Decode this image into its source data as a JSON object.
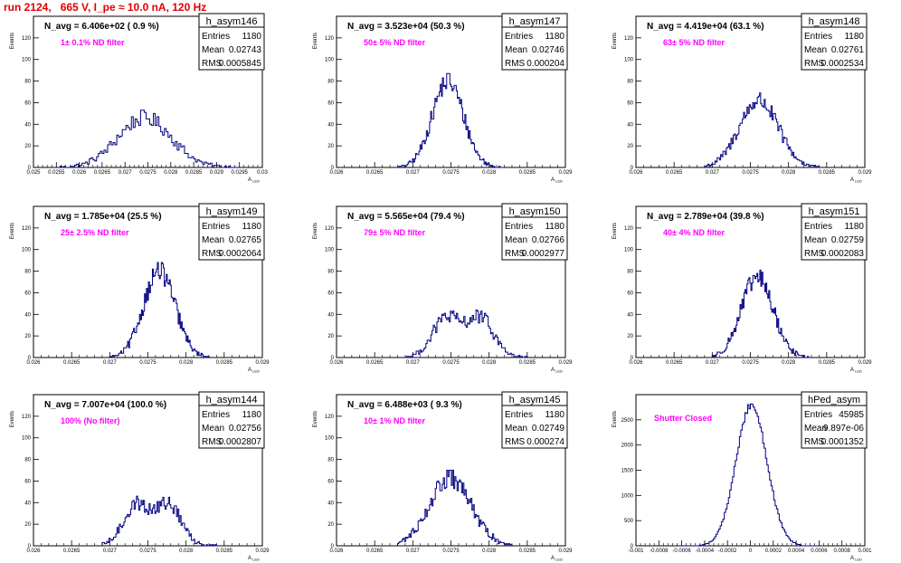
{
  "run_title": "run 2124,   665 V, I_pe ≈ 10.0 nA, 120 Hz",
  "colors": {
    "line": "#000080",
    "filter_text": "#ff00ff",
    "run_title": "#e00000",
    "axes": "#000000"
  },
  "chart_data": [
    {
      "type": "bar",
      "name": "h_asym146",
      "N_label": "N_avg = 6.406e+02 ( 0.9 %)",
      "filter": "1± 0.1% ND filter",
      "stats": {
        "Entries": "1180",
        "Mean": "0.02743",
        "RMS": "0.0005845"
      },
      "xlabel": "A_{LED}",
      "ylabel": "Events",
      "xlim": [
        0.025,
        0.03
      ],
      "ylim": [
        0,
        140
      ],
      "xticks": [
        "0.025",
        "0.0255",
        "0.026",
        "0.0265",
        "0.027",
        "0.0275",
        "0.028",
        "0.0285",
        "0.029",
        "0.0295",
        "0.03"
      ],
      "yticks": [
        "0",
        "20",
        "40",
        "60",
        "80",
        "100",
        "120"
      ],
      "hist_mu": 0.02743,
      "hist_sigma": 0.000585,
      "hist_peak": 46,
      "hist_range": [
        0.0255,
        0.0295
      ],
      "bins": 100,
      "bimodal": 0
    },
    {
      "type": "bar",
      "name": "h_asym147",
      "N_label": "N_avg = 3.523e+04 (50.3 %)",
      "filter": "50± 5% ND filter",
      "stats": {
        "Entries": "1180",
        "Mean": "0.02746",
        "RMS": "0.000204"
      },
      "xlabel": "A_{LED}",
      "ylabel": "Events",
      "xlim": [
        0.026,
        0.029
      ],
      "ylim": [
        0,
        140
      ],
      "xticks": [
        "0.026",
        "0.0265",
        "0.027",
        "0.0275",
        "0.028",
        "0.0285",
        "0.029"
      ],
      "yticks": [
        "0",
        "20",
        "40",
        "60",
        "80",
        "100",
        "120"
      ],
      "hist_mu": 0.02746,
      "hist_sigma": 0.000204,
      "hist_peak": 80,
      "hist_range": [
        0.0268,
        0.0282
      ],
      "bins": 100,
      "bimodal": 0
    },
    {
      "type": "bar",
      "name": "h_asym148",
      "N_label": "N_avg = 4.419e+04 (63.1 %)",
      "filter": "63± 5% ND filter",
      "stats": {
        "Entries": "1180",
        "Mean": "0.02761",
        "RMS": "0.0002534"
      },
      "xlabel": "A_{LED}",
      "ylabel": "Events",
      "xlim": [
        0.026,
        0.029
      ],
      "ylim": [
        0,
        140
      ],
      "xticks": [
        "0.026",
        "0.0265",
        "0.027",
        "0.0275",
        "0.028",
        "0.0285",
        "0.029"
      ],
      "yticks": [
        "0",
        "20",
        "40",
        "60",
        "80",
        "100",
        "120"
      ],
      "hist_mu": 0.02761,
      "hist_sigma": 0.000253,
      "hist_peak": 62,
      "hist_range": [
        0.0269,
        0.0284
      ],
      "bins": 100,
      "bimodal": 0
    },
    {
      "type": "bar",
      "name": "h_asym149",
      "N_label": "N_avg = 1.785e+04 (25.5 %)",
      "filter": "25± 2.5% ND filter",
      "stats": {
        "Entries": "1180",
        "Mean": "0.02765",
        "RMS": "0.0002064"
      },
      "xlabel": "A_{LED}",
      "ylabel": "Events",
      "xlim": [
        0.026,
        0.029
      ],
      "ylim": [
        0,
        140
      ],
      "xticks": [
        "0.026",
        "0.0265",
        "0.027",
        "0.0275",
        "0.028",
        "0.0285",
        "0.029"
      ],
      "yticks": [
        "0",
        "20",
        "40",
        "60",
        "80",
        "100",
        "120"
      ],
      "hist_mu": 0.02765,
      "hist_sigma": 0.000206,
      "hist_peak": 80,
      "hist_range": [
        0.027,
        0.0283
      ],
      "bins": 100,
      "bimodal": 0
    },
    {
      "type": "bar",
      "name": "h_asym150",
      "N_label": "N_avg = 5.565e+04 (79.4 %)",
      "filter": "79± 5% ND filter",
      "stats": {
        "Entries": "1180",
        "Mean": "0.02766",
        "RMS": "0.0002977"
      },
      "xlabel": "A_{LED}",
      "ylabel": "Events",
      "xlim": [
        0.026,
        0.029
      ],
      "ylim": [
        0,
        140
      ],
      "xticks": [
        "0.026",
        "0.0265",
        "0.027",
        "0.0275",
        "0.028",
        "0.0285",
        "0.029"
      ],
      "yticks": [
        "0",
        "20",
        "40",
        "60",
        "80",
        "100",
        "120"
      ],
      "hist_mu": 0.02766,
      "hist_sigma": 0.000298,
      "hist_peak": 52,
      "hist_range": [
        0.0269,
        0.0285
      ],
      "bins": 100,
      "bimodal": 1
    },
    {
      "type": "bar",
      "name": "h_asym151",
      "N_label": "N_avg = 2.789e+04 (39.8 %)",
      "filter": "40± 4% ND filter",
      "stats": {
        "Entries": "1180",
        "Mean": "0.02759",
        "RMS": "0.0002083"
      },
      "xlabel": "A_{LED}",
      "ylabel": "Events",
      "xlim": [
        0.026,
        0.029
      ],
      "ylim": [
        0,
        140
      ],
      "xticks": [
        "0.026",
        "0.0265",
        "0.027",
        "0.0275",
        "0.028",
        "0.0285",
        "0.029"
      ],
      "yticks": [
        "0",
        "20",
        "40",
        "60",
        "80",
        "100",
        "120"
      ],
      "hist_mu": 0.02759,
      "hist_sigma": 0.000208,
      "hist_peak": 74,
      "hist_range": [
        0.027,
        0.0283
      ],
      "bins": 100,
      "bimodal": 0
    },
    {
      "type": "bar",
      "name": "h_asym144",
      "N_label": "N_avg = 7.007e+04 (100.0 %)",
      "filter": "100% (No filter)",
      "stats": {
        "Entries": "1180",
        "Mean": "0.02756",
        "RMS": "0.0002807"
      },
      "xlabel": "A_{LED}",
      "ylabel": "Events",
      "xlim": [
        0.026,
        0.029
      ],
      "ylim": [
        0,
        140
      ],
      "xticks": [
        "0.026",
        "0.0265",
        "0.027",
        "0.0275",
        "0.028",
        "0.0285",
        "0.029"
      ],
      "yticks": [
        "0",
        "20",
        "40",
        "60",
        "80",
        "100",
        "120"
      ],
      "hist_mu": 0.02756,
      "hist_sigma": 0.000281,
      "hist_peak": 54,
      "hist_range": [
        0.0269,
        0.0284
      ],
      "bins": 100,
      "bimodal": 1
    },
    {
      "type": "bar",
      "name": "h_asym145",
      "N_label": "N_avg = 6.488e+03 ( 9.3 %)",
      "filter": "10± 1% ND filter",
      "stats": {
        "Entries": "1180",
        "Mean": "0.02749",
        "RMS": "0.000274"
      },
      "xlabel": "A_{LED}",
      "ylabel": "Events",
      "xlim": [
        0.026,
        0.029
      ],
      "ylim": [
        0,
        140
      ],
      "xticks": [
        "0.026",
        "0.0265",
        "0.027",
        "0.0275",
        "0.028",
        "0.0285",
        "0.029"
      ],
      "yticks": [
        "0",
        "20",
        "40",
        "60",
        "80",
        "100",
        "120"
      ],
      "hist_mu": 0.02749,
      "hist_sigma": 0.000274,
      "hist_peak": 62,
      "hist_range": [
        0.0268,
        0.0283
      ],
      "bins": 100,
      "bimodal": 0
    },
    {
      "type": "bar",
      "name": "hPed_asym",
      "N_label": "",
      "filter": "Shutter Closed",
      "stats": {
        "Entries": "45985",
        "Mean": "9.897e-06",
        "RMS": "0.0001352"
      },
      "xlabel": "A_{LED}",
      "ylabel": "Events",
      "xlim": [
        -0.001,
        0.001
      ],
      "ylim": [
        0,
        3000
      ],
      "xticks": [
        "-0.001",
        "-0.0008",
        "-0.0006",
        "-0.0004",
        "-0.0002",
        "0",
        "0.0002",
        "0.0004",
        "0.0006",
        "0.0008",
        "0.001"
      ],
      "yticks": [
        "0",
        "500",
        "1000",
        "1500",
        "2000",
        "2500"
      ],
      "hist_mu": 9.9e-06,
      "hist_sigma": 0.000135,
      "hist_peak": 2800,
      "hist_range": [
        -0.0006,
        0.0006
      ],
      "bins": 100,
      "bimodal": 0
    }
  ]
}
